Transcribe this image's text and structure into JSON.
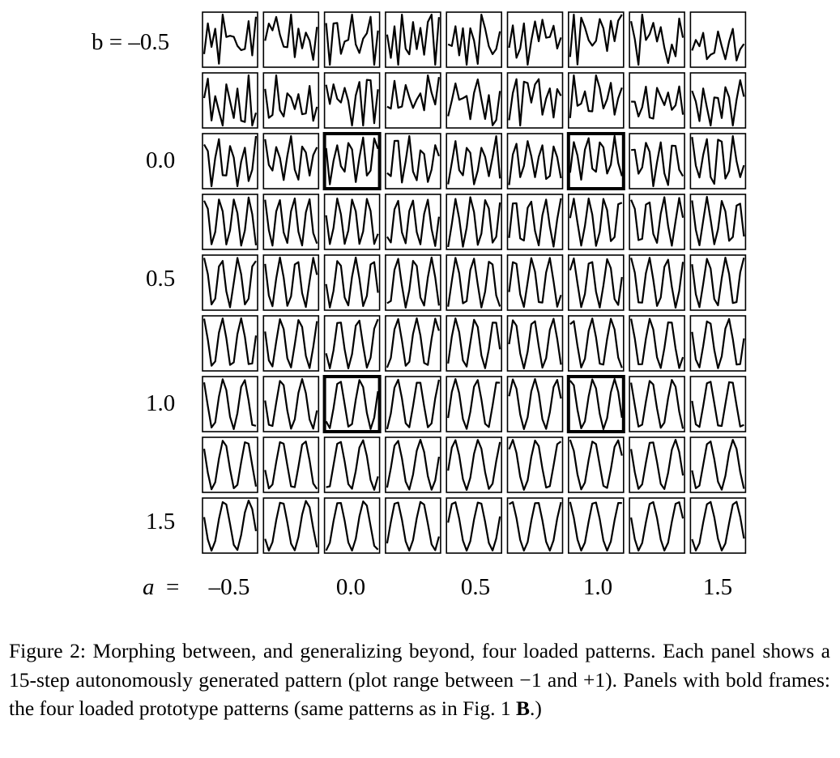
{
  "figure": {
    "row_labels": [
      {
        "row": 0,
        "text": "b = –0.5"
      },
      {
        "row": 2,
        "text": "0.0"
      },
      {
        "row": 4,
        "text": "0.5"
      },
      {
        "row": 6,
        "text": "1.0"
      },
      {
        "row": 8,
        "text": "1.5"
      }
    ],
    "a_label": {
      "var": "a",
      "eq": "="
    },
    "col_labels": [
      {
        "col": 0,
        "text": "–0.5"
      },
      {
        "col": 2,
        "text": "0.0"
      },
      {
        "col": 4,
        "text": "0.5"
      },
      {
        "col": 6,
        "text": "1.0"
      },
      {
        "col": 8,
        "text": "1.5"
      }
    ],
    "grid": {
      "rows": 9,
      "cols": 9,
      "steps": 15,
      "plot_range": [
        -1,
        1
      ],
      "bold_panels": [
        [
          2,
          2
        ],
        [
          2,
          6
        ],
        [
          6,
          2
        ],
        [
          6,
          6
        ]
      ]
    }
  },
  "caption": {
    "label": "Figure 2:",
    "text_before_bold": " Morphing between, and generalizing beyond, four loaded patterns. Each panel shows a 15-step autonomously generated pattern (plot range between −1 and +1). Panels with bold frames: the four loaded prototype patterns (same patterns as in Fig. 1 ",
    "bold": "B",
    "text_after_bold": ".)"
  }
}
